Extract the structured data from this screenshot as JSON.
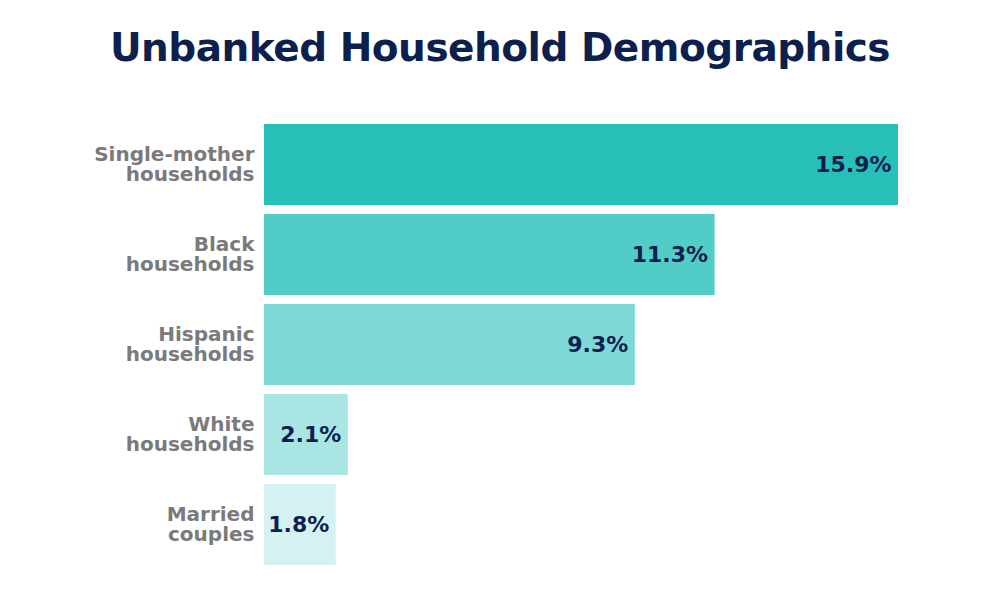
{
  "chart_data": {
    "type": "bar",
    "title": "Unbanked Household Demographics",
    "orientation": "horizontal",
    "categories": [
      "Single-mother households",
      "Black households",
      "Hispanic households",
      "White households",
      "Married couples"
    ],
    "values": [
      15.9,
      11.3,
      9.3,
      2.1,
      1.8
    ],
    "value_labels": [
      "15.9%",
      "11.3%",
      "9.3%",
      "2.1%",
      "1.8%"
    ],
    "colors": [
      "#27bfb8",
      "#52ccc6",
      "#7dd9d5",
      "#a8e5e3",
      "#d4f2f1"
    ],
    "data_labels": true,
    "tick_labels": "y",
    "grid": false
  }
}
